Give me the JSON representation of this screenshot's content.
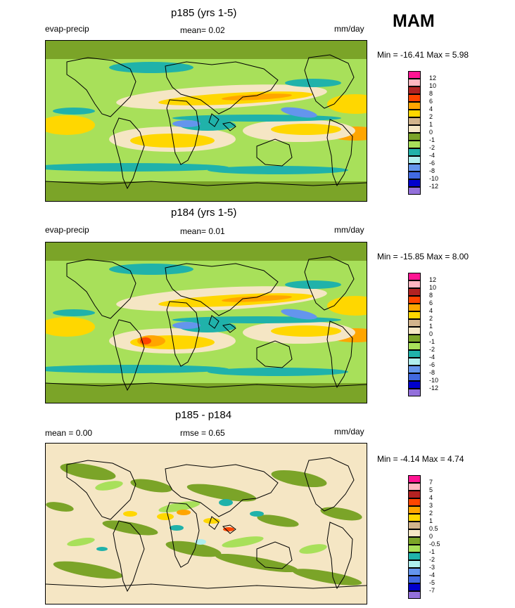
{
  "season": "MAM",
  "chart_data": [
    {
      "type": "heatmap",
      "title": "p185 (yrs 1-5)",
      "left_label": "evap-precip",
      "center_label": "mean=   0.02",
      "units": "mm/day",
      "minmax": "Min = -16.41 Max =   5.98",
      "contour_levels": [
        "12",
        "10",
        "8",
        "6",
        "4",
        "2",
        "1",
        "0",
        "-1",
        "-2",
        "-4",
        "-6",
        "-8",
        "-10",
        "-12"
      ],
      "colors": [
        "#ff1493",
        "#ffb6c1",
        "#b22222",
        "#ff4500",
        "#ffa500",
        "#ffd700",
        "#d2b48c",
        "#f5e6c4",
        "#7ba428",
        "#a8e05a",
        "#20b2aa",
        "#afeeee",
        "#6495ed",
        "#4169e1",
        "#0000cd",
        "#9370db"
      ]
    },
    {
      "type": "heatmap",
      "title": "p184 (yrs 1-5)",
      "left_label": "evap-precip",
      "center_label": "mean=   0.01",
      "units": "mm/day",
      "minmax": "Min = -15.85 Max =   8.00",
      "contour_levels": [
        "12",
        "10",
        "8",
        "6",
        "4",
        "2",
        "1",
        "0",
        "-1",
        "-2",
        "-4",
        "-6",
        "-8",
        "-10",
        "-12"
      ],
      "colors": [
        "#ff1493",
        "#ffb6c1",
        "#b22222",
        "#ff4500",
        "#ffa500",
        "#ffd700",
        "#d2b48c",
        "#f5e6c4",
        "#7ba428",
        "#a8e05a",
        "#20b2aa",
        "#afeeee",
        "#6495ed",
        "#4169e1",
        "#0000cd",
        "#9370db"
      ]
    },
    {
      "type": "heatmap",
      "title": "p185 - p184",
      "left_label": "mean =    0.00",
      "center_label": "rmse =    0.65",
      "units": "mm/day",
      "minmax": "Min =  -4.14 Max =   4.74",
      "contour_levels": [
        "7",
        "5",
        "4",
        "3",
        "2",
        "1",
        "0.5",
        "0",
        "-0.5",
        "-1",
        "-2",
        "-3",
        "-4",
        "-5",
        "-7"
      ],
      "colors": [
        "#ff1493",
        "#ffb6c1",
        "#b22222",
        "#ff4500",
        "#ffa500",
        "#ffd700",
        "#d2b48c",
        "#f5e6c4",
        "#7ba428",
        "#a8e05a",
        "#20b2aa",
        "#afeeee",
        "#6495ed",
        "#4169e1",
        "#0000cd",
        "#9370db"
      ]
    }
  ]
}
